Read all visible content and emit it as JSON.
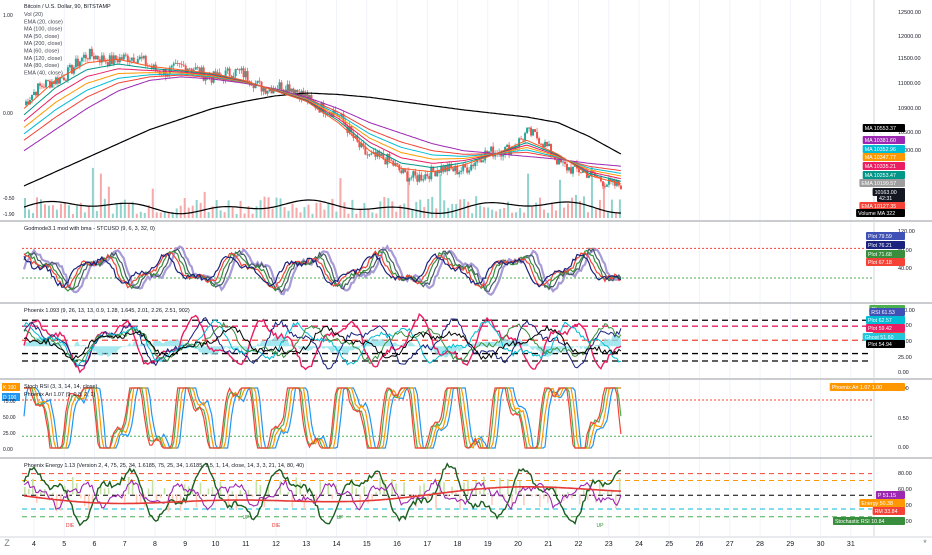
{
  "panes": [
    {
      "id": "price",
      "title": "Bitcoin / U.S. Dollar, 90, BITSTAMP",
      "legend": [
        "Vol (20)",
        "EMA (20, close)",
        "MA (100, close)",
        "MA (50, close)",
        "MA (200, close)",
        "MA (60, close)",
        "MA (120, close)",
        "MA (80, close)",
        "EMA (40, close)"
      ],
      "left_scale": [
        "1.00",
        "0.00",
        "-0.50",
        "-1.90"
      ],
      "right_ticks": [
        "12500.00",
        "12000.00",
        "11500.00",
        "11000.00",
        "10900.00",
        "10500.00",
        "10000.00"
      ],
      "badges": [
        {
          "label": "MA",
          "value": "10553.37",
          "color": "#000000"
        },
        {
          "label": "MA",
          "value": "10381.60",
          "color": "#9c27b0"
        },
        {
          "label": "MA",
          "value": "10352.96",
          "color": "#00bcd4"
        },
        {
          "label": "MA",
          "value": "10347.77",
          "color": "#ff9800"
        },
        {
          "label": "MA",
          "value": "10335.21",
          "color": "#e91e63"
        },
        {
          "label": "MA",
          "value": "10253.47",
          "color": "#009688"
        },
        {
          "label": "EMA",
          "value": "10199.57",
          "color": "#9e9e9e"
        },
        {
          "label": "",
          "value": "10163.00",
          "color": "#131722"
        },
        {
          "label": "",
          "value": "42:31",
          "color": "#131722"
        },
        {
          "label": "EMA",
          "value": "10127.35",
          "color": "#f44336"
        },
        {
          "label": "Volume MA",
          "value": "322",
          "color": "#000000"
        }
      ]
    },
    {
      "id": "godmode",
      "title": "Godmode3.1 mod with bma - STCUSD (9, 6, 3, 32, 0)",
      "right_ticks": [
        "120.00",
        "80.00",
        "40.00"
      ],
      "badges": [
        {
          "label": "Plot",
          "value": "79.59",
          "color": "#3f51b5"
        },
        {
          "label": "Plot",
          "value": "76.21",
          "color": "#1a237e"
        },
        {
          "label": "Plot",
          "value": "71.68",
          "color": "#388e3c"
        },
        {
          "label": "Plot",
          "value": "67.18",
          "color": "#f44336"
        }
      ]
    },
    {
      "id": "phoenix",
      "title": "Phoenix 1.093 (9, 26, 13, 13, 0.9, 1.28, 1.645, 2.01, 2.26, 2.51, 902)",
      "right_ticks": [
        "100.00",
        "75.00",
        "50.00",
        "25.00",
        "0.00"
      ],
      "badges": [
        {
          "label": "Ghost",
          "value": "...",
          "color": "#4caf50"
        },
        {
          "label": "RSI",
          "value": "61.53",
          "color": "#3f51b5"
        },
        {
          "label": "Plot",
          "value": "62.57",
          "color": "#00bcd4"
        },
        {
          "label": "Plot",
          "value": "59.42",
          "color": "#e91e63"
        },
        {
          "label": "Plot",
          "value": "...",
          "color": "#f44336"
        },
        {
          "label": "Ghost",
          "value": "51.60",
          "color": "#26c6da"
        },
        {
          "label": "Plot",
          "value": "54.94",
          "color": "#000000"
        }
      ]
    },
    {
      "id": "stochrsi",
      "title": "Stoch RSI (3, 3, 14, 14, close)",
      "subtitle": "Phoenix Ari 1.07 (9, 0.8, 2, 1)",
      "left_labels": [
        {
          "label": "K",
          "value": "100"
        },
        {
          "label": "D",
          "value": "100"
        }
      ],
      "left_scale": [
        "75.00",
        "50.00",
        "25.00",
        "0.00"
      ],
      "right_ticks": [
        "1.00",
        "0.50",
        "0.00"
      ],
      "badges": [
        {
          "label": "Phoenix Ari 1.07",
          "value": "1.00",
          "color": "#ff9800"
        }
      ]
    },
    {
      "id": "energy",
      "title": "Phoenix Energy 1.13 (Version 2, 4, 75, 25, 34, 1.6185, 75, 25, 34, 1.6185, 2.5, 1, 14, close, 14, 3, 3, 21, 14, 80, 40)",
      "right_ticks": [
        "80.00",
        "60.00",
        "40.00",
        "20.00"
      ],
      "badges": [
        {
          "label": "P",
          "value": "51.15",
          "color": "#9c27b0"
        },
        {
          "label": "Energy",
          "value": "50.38",
          "color": "#ff9800"
        },
        {
          "label": "RM",
          "value": "33.84",
          "color": "#f44336"
        },
        {
          "label": "Stochastic RSI",
          "value": "10.84",
          "color": "#388e3c"
        }
      ],
      "markers": [
        "DIE",
        "UP",
        "DIE",
        "UP",
        "UP"
      ]
    }
  ],
  "x_axis": [
    "4",
    "5",
    "6",
    "7",
    "8",
    "9",
    "10",
    "11",
    "12",
    "13",
    "14",
    "15",
    "16",
    "17",
    "18",
    "19",
    "20",
    "21",
    "22",
    "23",
    "24",
    "25",
    "26",
    "27",
    "28",
    "29",
    "30",
    "31"
  ],
  "corner_labels": [
    "Z",
    "*"
  ],
  "colors": {
    "up": "#26a69a",
    "down": "#ef5350",
    "hline_red": "#f44336",
    "hline_green": "#4caf50",
    "hline_black": "#000000",
    "magenta": "#e91e63"
  },
  "chart_data": [
    {
      "type": "candlestick",
      "title": "Bitcoin / U.S. Dollar, 90, BITSTAMP",
      "x": [
        "4",
        "5",
        "6",
        "7",
        "8",
        "9",
        "10",
        "11",
        "12",
        "13",
        "14",
        "15",
        "16",
        "17",
        "18",
        "19",
        "20",
        "21",
        "22",
        "23"
      ],
      "close": [
        11250,
        11650,
        11900,
        11950,
        11800,
        11750,
        11700,
        11650,
        11500,
        11400,
        11050,
        10550,
        10300,
        10250,
        10400,
        10550,
        10850,
        10500,
        10200,
        10163
      ],
      "series": [
        {
          "name": "MA (200, close)",
          "values": [
            10100,
            10300,
            10500,
            10700,
            10900,
            11050,
            11200,
            11300,
            11380,
            11420,
            11400,
            11360,
            11300,
            11240,
            11180,
            11130,
            11080,
            11000,
            10800,
            10553
          ]
        },
        {
          "name": "MA (100, close)",
          "values": [
            10600,
            10900,
            11200,
            11450,
            11600,
            11650,
            11620,
            11560,
            11480,
            11360,
            11200,
            11000,
            10850,
            10700,
            10600,
            10560,
            10520,
            10480,
            10420,
            10381
          ]
        },
        {
          "name": "EMA (20, close)",
          "values": [
            11200,
            11600,
            11850,
            11900,
            11800,
            11750,
            11700,
            11600,
            11450,
            11300,
            11000,
            10600,
            10350,
            10300,
            10400,
            10550,
            10750,
            10550,
            10250,
            10127
          ]
        }
      ],
      "ylim": [
        9900,
        12600
      ]
    }
  ]
}
